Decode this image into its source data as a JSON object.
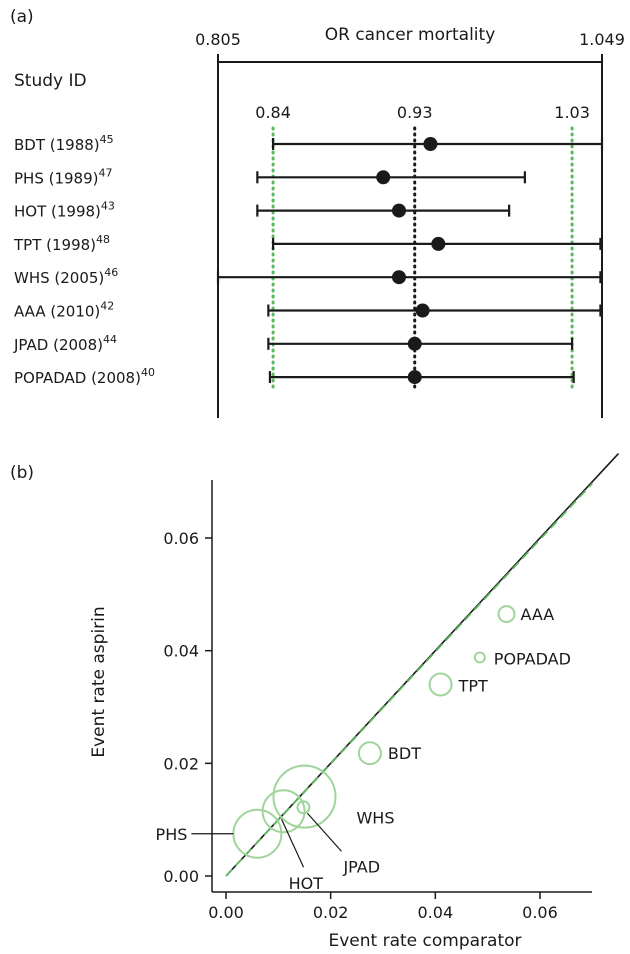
{
  "chart_data": [
    {
      "type": "forest",
      "panel_label": "(a)",
      "title": "OR cancer mortality",
      "row_header": "Study ID",
      "xlim": [
        0.805,
        1.049
      ],
      "xlim_labels": [
        "0.805",
        "1.049"
      ],
      "reference_lines": [
        {
          "value": 0.84,
          "label": "0.84",
          "color": "#5cb85c"
        },
        {
          "value": 0.93,
          "label": "0.93",
          "color": "#1a1a1a"
        },
        {
          "value": 1.03,
          "label": "1.03",
          "color": "#5cb85c"
        }
      ],
      "studies": [
        {
          "name": "BDT (1988)",
          "ref": "45",
          "or": 0.94,
          "lower": 0.84,
          "upper": 1.049,
          "arrow": true
        },
        {
          "name": "PHS (1989)",
          "ref": "47",
          "or": 0.91,
          "lower": 0.83,
          "upper": 1.0,
          "arrow": false
        },
        {
          "name": "HOT (1998)",
          "ref": "43",
          "or": 0.92,
          "lower": 0.83,
          "upper": 0.99,
          "arrow": false
        },
        {
          "name": "TPT (1998)",
          "ref": "48",
          "or": 0.945,
          "lower": 0.84,
          "upper": 1.048,
          "arrow": true
        },
        {
          "name": "WHS (2005)",
          "ref": "46",
          "or": 0.92,
          "lower": 0.805,
          "upper": 1.048,
          "arrow": true
        },
        {
          "name": "AAA (2010)",
          "ref": "42",
          "or": 0.935,
          "lower": 0.837,
          "upper": 1.048,
          "arrow": true
        },
        {
          "name": "JPAD (2008)",
          "ref": "44",
          "or": 0.93,
          "lower": 0.837,
          "upper": 1.03,
          "arrow": false
        },
        {
          "name": "POPADAD (2008)",
          "ref": "40",
          "or": 0.93,
          "lower": 0.838,
          "upper": 1.031,
          "arrow": false
        }
      ]
    },
    {
      "type": "scatter",
      "panel_label": "(b)",
      "xlabel": "Event rate comparator",
      "ylabel": "Event rate aspirin",
      "xlim": [
        -0.002,
        0.076
      ],
      "ylim": [
        -0.002,
        0.071
      ],
      "xticks": [
        "0.00",
        "0.02",
        "0.04",
        "0.06"
      ],
      "yticks": [
        "0.00",
        "0.02",
        "0.04",
        "0.06"
      ],
      "bubble_color": "#9fd49b",
      "lines": [
        {
          "kind": "identity",
          "style": "solid",
          "color": "#1a1a1a",
          "from": [
            0.0,
            0.0
          ],
          "to": [
            0.075,
            0.075
          ]
        },
        {
          "kind": "fit",
          "style": "dashed",
          "color": "#5cb85c",
          "from": [
            0.0,
            0.0
          ],
          "to": [
            0.07,
            0.0697
          ]
        }
      ],
      "points": [
        {
          "label": "AAA",
          "x": 0.0536,
          "y": 0.0465,
          "size": 8
        },
        {
          "label": "POPADAD",
          "x": 0.0485,
          "y": 0.0388,
          "size": 5
        },
        {
          "label": "TPT",
          "x": 0.041,
          "y": 0.034,
          "size": 11
        },
        {
          "label": "BDT",
          "x": 0.0275,
          "y": 0.0218,
          "size": 11
        },
        {
          "label": "WHS",
          "x": 0.015,
          "y": 0.0141,
          "size": 31
        },
        {
          "label": "JPAD",
          "x": 0.0148,
          "y": 0.0122,
          "size": 6
        },
        {
          "label": "HOT",
          "x": 0.011,
          "y": 0.0115,
          "size": 21
        },
        {
          "label": "PHS",
          "x": 0.006,
          "y": 0.0075,
          "size": 24
        }
      ]
    }
  ]
}
